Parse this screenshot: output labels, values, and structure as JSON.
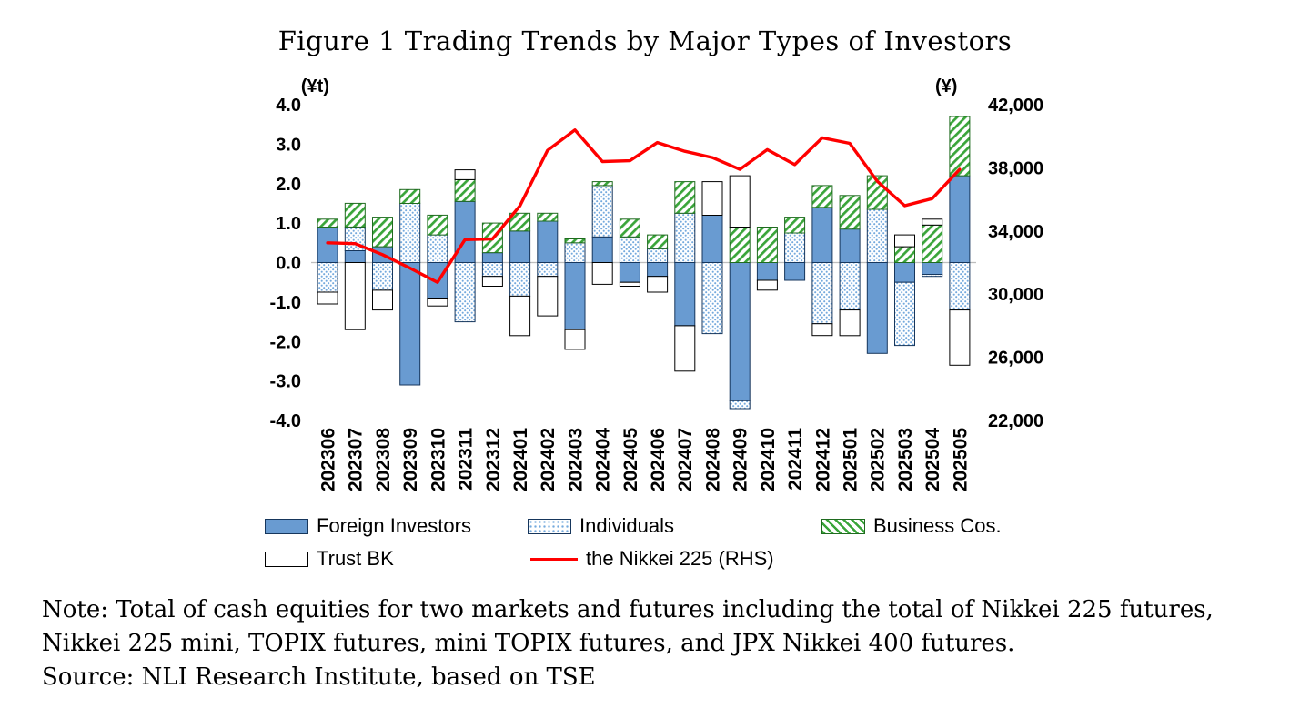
{
  "title": "Figure 1 Trading Trends by Major Types of Investors",
  "left_axis_unit": "(¥t)",
  "right_axis_unit": "(¥)",
  "legend": {
    "foreign": "Foreign Investors",
    "individuals": "Individuals",
    "business": "Business Cos.",
    "trust": "Trust BK",
    "nikkei": "the Nikkei 225 (RHS)"
  },
  "note_line1": "Note: Total of cash equities for two markets and futures including the total of Nikkei 225 futures,",
  "note_line2": "Nikkei 225 mini, TOPIX futures, mini TOPIX futures, and JPX Nikkei 400 futures.",
  "source_line": "Source: NLI Research Institute, based on TSE",
  "colors": {
    "foreign_bar": "#699bd1",
    "individuals_dot": "#74a9dd",
    "business_hatch": "#3aa53a",
    "bar_border_blue": "#16365c",
    "bar_border_green": "#1f6b1f",
    "trust_fill": "#ffffff",
    "trust_border": "#000000",
    "nikkei_line": "#ff0000",
    "zero_line": "#bdbdbd"
  },
  "chart_data": {
    "type": "bar",
    "subtype": "stacked-bar-with-line",
    "title": "Figure 1 Trading Trends by Major Types of Investors",
    "categories": [
      "202306",
      "202307",
      "202308",
      "202309",
      "202310",
      "202311",
      "202312",
      "202401",
      "202402",
      "202403",
      "202404",
      "202405",
      "202406",
      "202407",
      "202408",
      "202409",
      "202410",
      "202411",
      "202412",
      "202501",
      "202502",
      "202503",
      "202504",
      "202505"
    ],
    "series": [
      {
        "name": "Foreign Investors",
        "type": "bar",
        "axis": "left",
        "values": [
          0.9,
          0.3,
          0.4,
          -3.1,
          -0.9,
          1.55,
          0.25,
          0.8,
          1.05,
          -1.7,
          0.65,
          -0.5,
          -0.35,
          -1.6,
          1.2,
          -3.5,
          -0.45,
          -0.45,
          1.4,
          0.85,
          -2.3,
          -0.5,
          -0.3,
          2.2
        ]
      },
      {
        "name": "Individuals",
        "type": "bar",
        "axis": "left",
        "values": [
          -0.75,
          0.6,
          -0.7,
          1.5,
          0.7,
          -1.5,
          -0.35,
          -0.85,
          -0.35,
          0.5,
          1.3,
          0.65,
          0.35,
          1.25,
          -1.8,
          -0.2,
          0.0,
          0.75,
          -1.55,
          -1.2,
          1.35,
          -1.6,
          -0.05,
          -1.2
        ]
      },
      {
        "name": "Business Cos.",
        "type": "bar",
        "axis": "left",
        "values": [
          0.2,
          0.6,
          0.75,
          0.35,
          0.5,
          0.55,
          0.75,
          0.45,
          0.2,
          0.1,
          0.1,
          0.45,
          0.35,
          0.8,
          0.0,
          0.9,
          0.9,
          0.4,
          0.55,
          0.85,
          0.85,
          0.4,
          0.95,
          1.5
        ]
      },
      {
        "name": "Trust BK",
        "type": "bar",
        "axis": "left",
        "values": [
          -0.3,
          -1.7,
          -0.5,
          0.0,
          -0.2,
          0.25,
          -0.25,
          -1.0,
          -1.0,
          -0.5,
          -0.55,
          -0.1,
          -0.4,
          -1.15,
          0.85,
          1.3,
          -0.25,
          0.0,
          -0.3,
          -0.65,
          0.0,
          0.3,
          0.15,
          -1.4
        ]
      },
      {
        "name": "the Nikkei 225 (RHS)",
        "type": "line",
        "axis": "right",
        "values": [
          33250,
          33200,
          32500,
          31650,
          30750,
          33450,
          33500,
          35600,
          39100,
          40400,
          38400,
          38450,
          39600,
          39050,
          38650,
          37900,
          39150,
          38200,
          39900,
          39550,
          37150,
          35600,
          36050,
          37900
        ]
      }
    ],
    "left_axis": {
      "min": -4,
      "max": 4,
      "step": 1,
      "label": "(¥t)",
      "ticks": [
        "4.0",
        "3.0",
        "2.0",
        "1.0",
        "0.0",
        "-1.0",
        "-2.0",
        "-3.0",
        "-4.0"
      ]
    },
    "right_axis": {
      "min": 22000,
      "max": 42000,
      "step": 4000,
      "label": "(¥)",
      "ticks": [
        "42,000",
        "38,000",
        "34,000",
        "30,000",
        "26,000",
        "22,000"
      ]
    },
    "grid": "zero-line-only",
    "legend_position": "bottom"
  }
}
